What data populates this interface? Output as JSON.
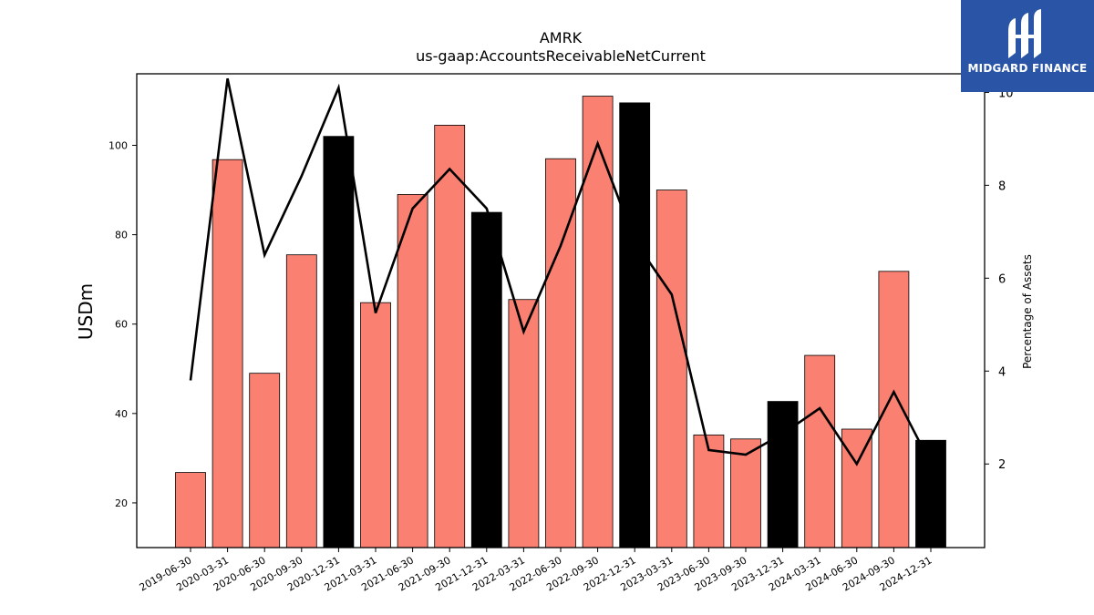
{
  "header": {
    "ticker": "AMRK",
    "metric": "us-gaap:AccountsReceivableNetCurrent"
  },
  "logo": {
    "text": "MIDGARD FINANCE"
  },
  "colors": {
    "bar_regular": "#fa8072",
    "bar_year_end": "#000000",
    "line": "#000000",
    "logo_bg": "#2a55a6"
  },
  "chart_data": {
    "type": "bar",
    "title": "AMRK",
    "subtitle": "us-gaap:AccountsReceivableNetCurrent",
    "ylabel": "USDm",
    "y2label": "Percentage of Assets",
    "ylim": [
      10,
      116
    ],
    "y2lim": [
      0.2,
      10.4
    ],
    "yticks": [
      20,
      40,
      60,
      80,
      100
    ],
    "y2ticks": [
      2,
      4,
      6,
      8,
      10
    ],
    "grid": false,
    "categories": [
      "2019-06-30",
      "2020-03-31",
      "2020-06-30",
      "2020-09-30",
      "2020-12-31",
      "2021-03-31",
      "2021-06-30",
      "2021-09-30",
      "2021-12-31",
      "2022-03-31",
      "2022-06-30",
      "2022-09-30",
      "2022-12-31",
      "2023-03-31",
      "2023-06-30",
      "2023-09-30",
      "2023-12-31",
      "2024-03-31",
      "2024-06-30",
      "2024-09-30",
      "2024-12-31"
    ],
    "series": [
      {
        "axis": "left",
        "kind": "bar",
        "values": [
          26.8,
          96.8,
          49.0,
          75.5,
          102.0,
          64.8,
          89.0,
          104.5,
          85.0,
          65.5,
          97.0,
          111.0,
          109.5,
          90.0,
          35.2,
          34.3,
          42.7,
          53.0,
          36.5,
          71.8,
          34.0
        ],
        "year_end": [
          false,
          false,
          false,
          false,
          true,
          false,
          false,
          false,
          true,
          false,
          false,
          false,
          true,
          false,
          false,
          false,
          true,
          false,
          false,
          false,
          true
        ]
      },
      {
        "axis": "right",
        "kind": "line",
        "values": [
          3.8,
          10.3,
          6.5,
          8.2,
          10.1,
          5.25,
          7.5,
          8.35,
          7.5,
          4.85,
          6.7,
          8.9,
          6.8,
          5.65,
          2.3,
          2.2,
          2.65,
          3.2,
          2.0,
          3.55,
          2.0
        ]
      }
    ]
  }
}
